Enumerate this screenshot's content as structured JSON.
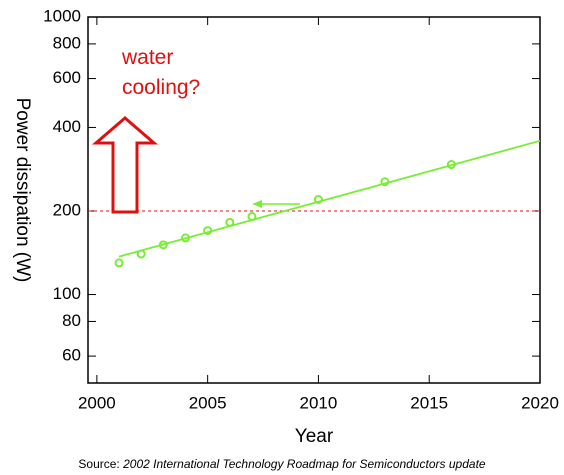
{
  "chart_data": {
    "type": "scatter",
    "y_label": "Power dissipation (W)",
    "x_label": "Year",
    "source_prefix": "Source:",
    "source": "2002 International Technology Roadmap for Semiconductors update",
    "annotation": "water\ncooling?",
    "log_y": true,
    "xlim": [
      1999.6,
      2020
    ],
    "xticks": [
      2000,
      2005,
      2010,
      2015,
      2020
    ],
    "ylim": [
      48,
      1000
    ],
    "yticks": [
      60,
      80,
      100,
      200,
      400,
      600,
      800,
      1000
    ],
    "threshold": 200,
    "threshold_color": "#e01010",
    "series": [
      {
        "color": "#77ee33",
        "x": [
          2001,
          2002,
          2003,
          2004,
          2005,
          2006,
          2007,
          2010,
          2013,
          2016
        ],
        "values": [
          130,
          140,
          151,
          160,
          170,
          182,
          191,
          220,
          255,
          294
        ]
      },
      {
        "color": "#77ee33",
        "x": [
          2001,
          2020
        ],
        "values": [
          137,
          358
        ],
        "line": true
      }
    ]
  }
}
